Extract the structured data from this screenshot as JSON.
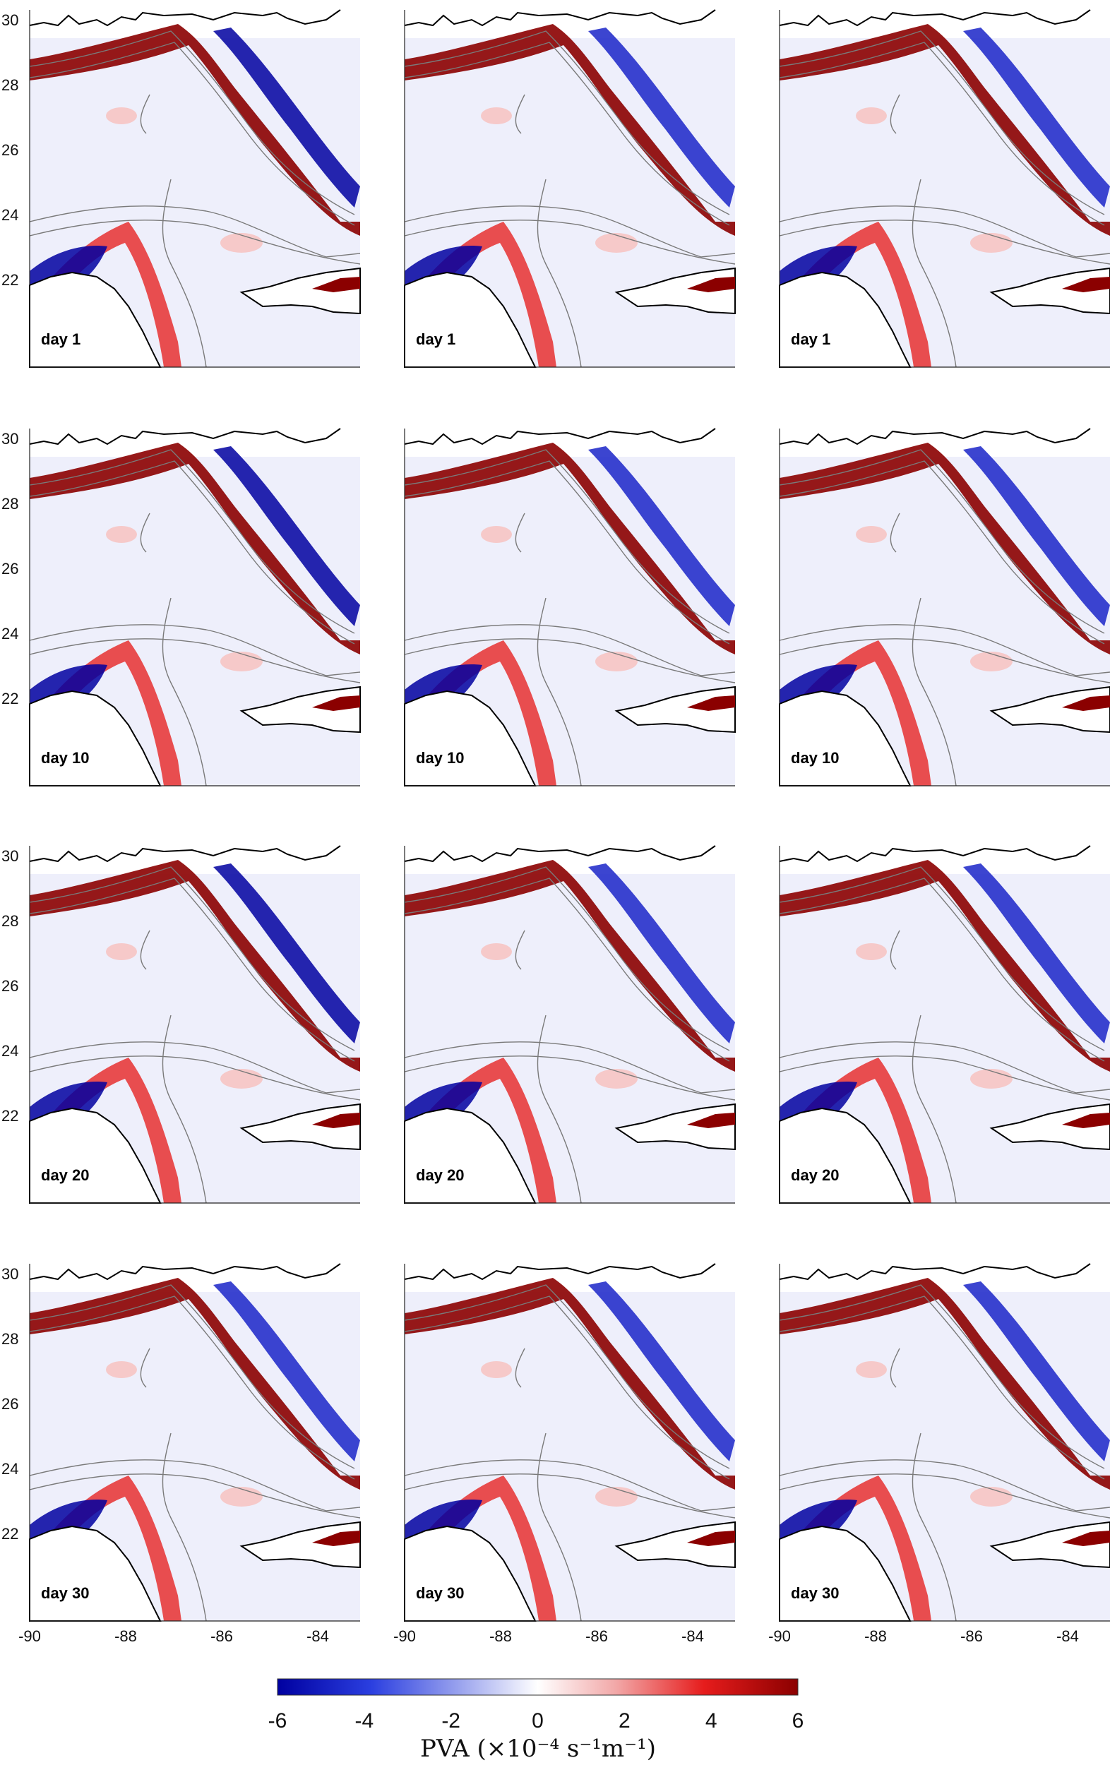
{
  "figure": {
    "rows": [
      {
        "day_label": "day 1"
      },
      {
        "day_label": "day 10"
      },
      {
        "day_label": "day 20"
      },
      {
        "day_label": "day 30"
      }
    ],
    "columns": 3,
    "lat_ticks": [
      "30",
      "28",
      "26",
      "24",
      "22"
    ],
    "lon_ticks": [
      "-90",
      "-88",
      "-86",
      "-84"
    ],
    "colors": {
      "strong_positive": "#8b0000",
      "positive": "#e63030",
      "light_positive": "#f6c9c9",
      "neutral": "#ffffff",
      "light_negative": "#cdd2f4",
      "negative": "#1a24c8",
      "strong_negative": "#0000a0",
      "contour": "#7a7a7a",
      "coast": "#000000"
    }
  },
  "colorbar": {
    "ticks": [
      "-6",
      "-4",
      "-2",
      "0",
      "2",
      "4",
      "6"
    ],
    "label": "PVA (×10⁻⁴ s⁻¹m⁻¹)",
    "range": [
      -6,
      6
    ]
  }
}
